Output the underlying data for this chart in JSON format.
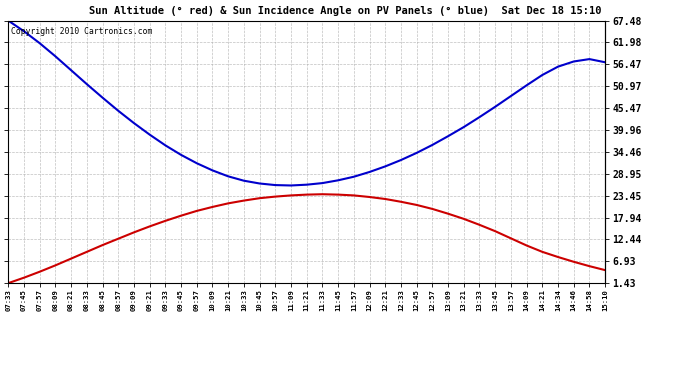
{
  "title": "Sun Altitude (° red) & Sun Incidence Angle on PV Panels (° blue)  Sat Dec 18 15:10",
  "copyright": "Copyright 2010 Cartronics.com",
  "background_color": "#ffffff",
  "plot_bg_color": "#ffffff",
  "grid_color": "#b0b0b0",
  "blue_color": "#0000cc",
  "red_color": "#cc0000",
  "yticks": [
    1.43,
    6.93,
    12.44,
    17.94,
    23.45,
    28.95,
    34.46,
    39.96,
    45.47,
    50.97,
    56.47,
    61.98,
    67.48
  ],
  "ylim": [
    1.43,
    67.48
  ],
  "x_labels": [
    "07:33",
    "07:45",
    "07:57",
    "08:09",
    "08:21",
    "08:33",
    "08:45",
    "08:57",
    "09:09",
    "09:21",
    "09:33",
    "09:45",
    "09:57",
    "10:09",
    "10:21",
    "10:33",
    "10:45",
    "10:57",
    "11:09",
    "11:21",
    "11:33",
    "11:45",
    "11:57",
    "12:09",
    "12:21",
    "12:33",
    "12:45",
    "12:57",
    "13:09",
    "13:21",
    "13:33",
    "13:45",
    "13:57",
    "14:09",
    "14:21",
    "14:34",
    "14:46",
    "14:58",
    "15:10"
  ],
  "n_points": 39,
  "red_vals": [
    1.43,
    2.8,
    4.3,
    5.9,
    7.6,
    9.3,
    11.0,
    12.6,
    14.2,
    15.7,
    17.1,
    18.4,
    19.6,
    20.6,
    21.5,
    22.2,
    22.8,
    23.2,
    23.5,
    23.7,
    23.8,
    23.7,
    23.5,
    23.1,
    22.6,
    21.9,
    21.1,
    20.1,
    18.9,
    17.6,
    16.1,
    14.5,
    12.7,
    10.9,
    9.3,
    8.0,
    6.8,
    5.7,
    4.7
  ],
  "blue_vals": [
    67.48,
    64.8,
    61.8,
    58.5,
    55.0,
    51.5,
    48.1,
    44.8,
    41.7,
    38.8,
    36.1,
    33.7,
    31.6,
    29.8,
    28.3,
    27.2,
    26.5,
    26.1,
    26.0,
    26.2,
    26.6,
    27.3,
    28.2,
    29.4,
    30.8,
    32.4,
    34.2,
    36.2,
    38.4,
    40.7,
    43.2,
    45.8,
    48.5,
    51.2,
    53.8,
    55.9,
    57.2,
    57.8,
    57.0
  ],
  "figsize": [
    6.9,
    3.75
  ],
  "dpi": 100
}
